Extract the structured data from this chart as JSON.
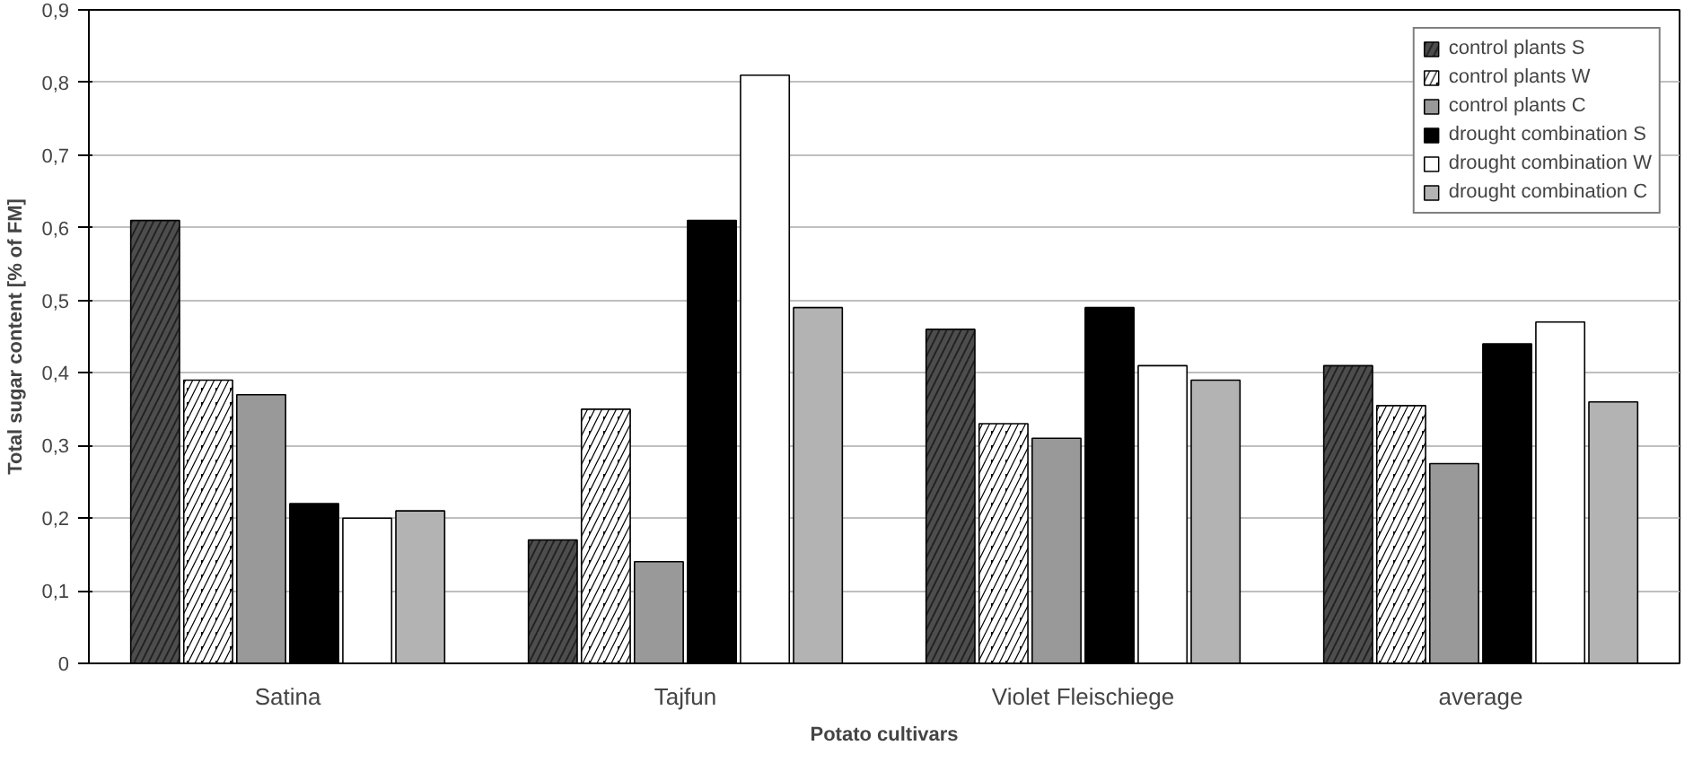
{
  "chart_data": {
    "type": "bar",
    "xlabel": "Potato cultivars",
    "ylabel": "Total sugar content [% of FM]",
    "categories": [
      "Satina",
      "Tajfun",
      "Violet Fleischiege",
      "average"
    ],
    "series": [
      {
        "name": "control plants S",
        "color": "#4d4d4d",
        "values": [
          0.61,
          0.17,
          0.46,
          0.41
        ]
      },
      {
        "name": "control plants W",
        "color": "#000000",
        "values": [
          0.39,
          0.35,
          0.33,
          0.355
        ]
      },
      {
        "name": "control plants C",
        "color": "#999999",
        "values": [
          0.37,
          0.14,
          0.31,
          0.275
        ]
      },
      {
        "name": "drought combination S",
        "color": "#000000",
        "values": [
          0.22,
          0.61,
          0.49,
          0.44
        ]
      },
      {
        "name": "drought combination W",
        "color": "#ffffff",
        "values": [
          0.2,
          0.81,
          0.41,
          0.47
        ]
      },
      {
        "name": "drought combination C",
        "color": "#b3b3b3",
        "values": [
          0.21,
          0.49,
          0.39,
          0.36
        ]
      }
    ],
    "ylim": [
      0,
      0.9
    ],
    "yticks": [
      0,
      {
        "value": 0.1,
        "label": "0,1"
      },
      {
        "value": 0.2,
        "label": "0,2"
      },
      {
        "value": 0.3,
        "label": "0,3"
      },
      {
        "value": 0.4,
        "label": "0,4"
      },
      {
        "value": 0.5,
        "label": "0,5"
      },
      {
        "value": 0.6,
        "label": "0,6"
      },
      {
        "value": 0.7,
        "label": "0,7"
      },
      {
        "value": 0.8,
        "label": "0,8"
      },
      {
        "value": 0.9,
        "label": "0,9"
      }
    ],
    "grid": "y",
    "legend": "top right"
  }
}
